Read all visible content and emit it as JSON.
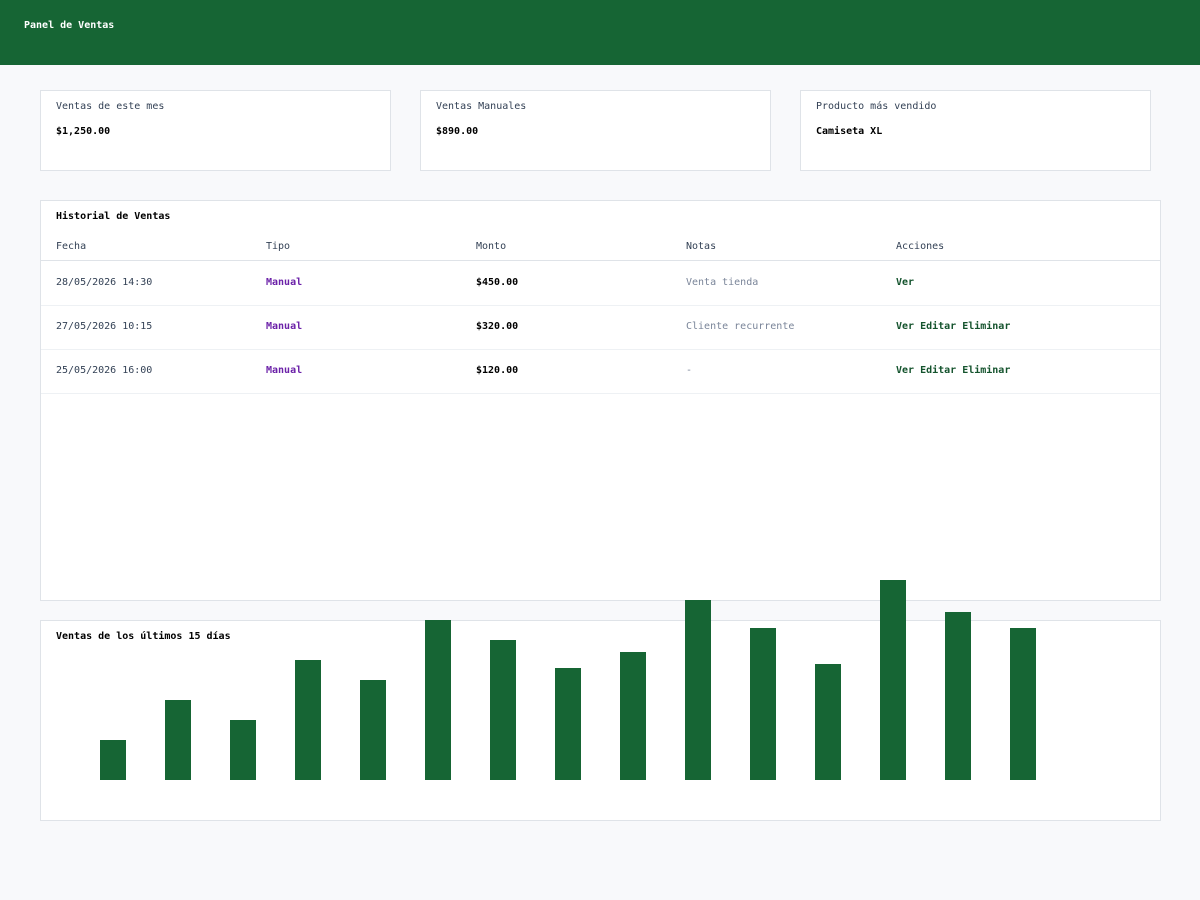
{
  "header": {
    "title": "Panel de Ventas"
  },
  "cards": [
    {
      "label": "Ventas de este mes",
      "value": "$1,250.00"
    },
    {
      "label": "Ventas Manuales",
      "value": "$890.00"
    },
    {
      "label": "Producto más vendido",
      "value": "Camiseta XL"
    }
  ],
  "history": {
    "title": "Historial de Ventas",
    "columns": [
      "Fecha",
      "Tipo",
      "Monto",
      "Notas",
      "Acciones"
    ],
    "rows": [
      {
        "fecha": "28/05/2026 14:30",
        "tipo": "Manual",
        "monto": "$450.00",
        "notas": "Venta tienda",
        "actions": [
          "Ver"
        ]
      },
      {
        "fecha": "27/05/2026 10:15",
        "tipo": "Manual",
        "monto": "$320.00",
        "notas": "Cliente recurrente",
        "actions": [
          "Ver",
          "Editar",
          "Eliminar"
        ]
      },
      {
        "fecha": "25/05/2026 16:00",
        "tipo": "Manual",
        "monto": "$120.00",
        "notas": "-",
        "actions": [
          "Ver",
          "Editar",
          "Eliminar"
        ]
      }
    ]
  },
  "chart_data": {
    "type": "bar",
    "title": "Ventas de los últimos 15 días",
    "values": [
      40,
      80,
      60,
      120,
      100,
      160,
      140,
      112,
      128,
      180,
      152,
      116,
      200,
      168,
      152
    ],
    "ylim": [
      0,
      200
    ],
    "color": "#166534",
    "grid": false
  }
}
